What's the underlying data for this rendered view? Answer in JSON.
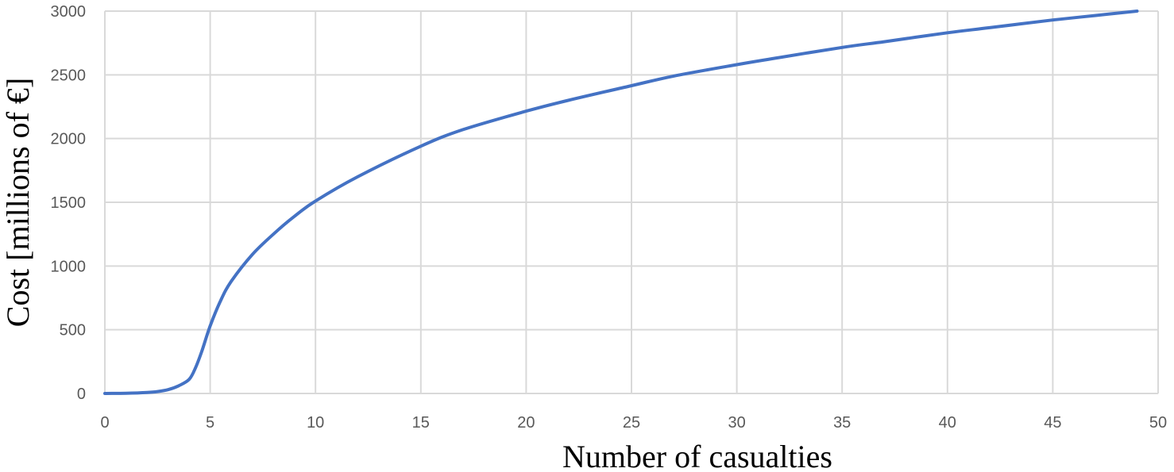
{
  "chart_data": {
    "type": "line",
    "title": "",
    "xlabel": "Number of casualties",
    "ylabel": "Cost [millions of €]",
    "xlim": [
      0,
      50
    ],
    "ylim": [
      0,
      3000
    ],
    "x_ticks": [
      "0",
      "5",
      "10",
      "15",
      "20",
      "25",
      "30",
      "35",
      "40",
      "45",
      "50"
    ],
    "y_ticks": [
      "0",
      "500",
      "1000",
      "1500",
      "2000",
      "2500",
      "3000"
    ],
    "grid": true,
    "legend": "none",
    "series_color": "#4472c4",
    "series": [
      {
        "x": [
          0,
          1,
          2,
          2.5,
          3,
          3.5,
          4,
          4.3,
          4.6,
          5,
          5.5,
          6,
          7,
          8,
          9,
          10,
          12,
          15,
          17,
          20,
          22,
          25,
          27,
          30,
          32,
          35,
          37,
          40,
          42,
          45,
          47,
          49
        ],
        "values": [
          0,
          2,
          8,
          15,
          30,
          60,
          110,
          200,
          330,
          530,
          730,
          880,
          1090,
          1250,
          1390,
          1510,
          1700,
          1940,
          2070,
          2215,
          2300,
          2415,
          2490,
          2580,
          2635,
          2715,
          2760,
          2830,
          2870,
          2930,
          2965,
          3000
        ]
      }
    ]
  }
}
